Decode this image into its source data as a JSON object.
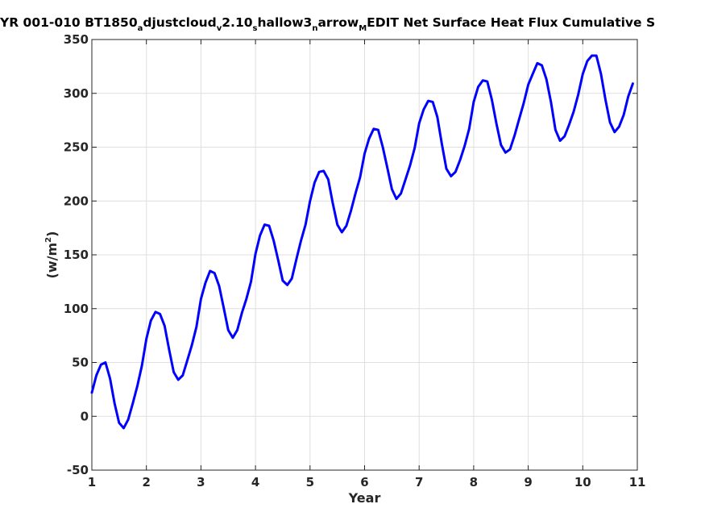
{
  "chart_data": {
    "type": "line",
    "title_parts": [
      {
        "text": "YR 001-010 BT1850",
        "style": "normal"
      },
      {
        "text": "a",
        "style": "sub"
      },
      {
        "text": "djustcloud",
        "style": "normal"
      },
      {
        "text": "v",
        "style": "sub"
      },
      {
        "text": "2.10",
        "style": "normal"
      },
      {
        "text": "s",
        "style": "sub"
      },
      {
        "text": "hallow3",
        "style": "normal"
      },
      {
        "text": "n",
        "style": "sub"
      },
      {
        "text": "arrow",
        "style": "normal"
      },
      {
        "text": "M",
        "style": "sub"
      },
      {
        "text": "EDIT Net Surface Heat Flux  Cumulative S",
        "style": "normal"
      }
    ],
    "xlabel": "Year",
    "ylabel_parts": [
      {
        "text": "(w/m",
        "style": "normal"
      },
      {
        "text": "2",
        "style": "sup"
      },
      {
        "text": ")",
        "style": "normal"
      }
    ],
    "xlim": [
      1,
      11
    ],
    "ylim": [
      -50,
      350
    ],
    "xticks": [
      1,
      2,
      3,
      4,
      5,
      6,
      7,
      8,
      9,
      10,
      11
    ],
    "xtick_labels": [
      "1",
      "2",
      "3",
      "4",
      "5",
      "6",
      "7",
      "8",
      "9",
      "10",
      "11"
    ],
    "yticks": [
      -50,
      0,
      50,
      100,
      150,
      200,
      250,
      300,
      350
    ],
    "ytick_labels": [
      "-50",
      "0",
      "50",
      "100",
      "150",
      "200",
      "250",
      "300",
      "350"
    ],
    "grid": true,
    "series": [
      {
        "color": "#0000ff",
        "x": [
          1.0,
          1.0833,
          1.1667,
          1.25,
          1.3333,
          1.4167,
          1.5,
          1.5833,
          1.6667,
          1.75,
          1.8333,
          1.9167,
          2.0,
          2.0833,
          2.1667,
          2.25,
          2.3333,
          2.4167,
          2.5,
          2.5833,
          2.6667,
          2.75,
          2.8333,
          2.9167,
          3.0,
          3.0833,
          3.1667,
          3.25,
          3.3333,
          3.4167,
          3.5,
          3.5833,
          3.6667,
          3.75,
          3.8333,
          3.9167,
          4.0,
          4.0833,
          4.1667,
          4.25,
          4.3333,
          4.4167,
          4.5,
          4.5833,
          4.6667,
          4.75,
          4.8333,
          4.9167,
          5.0,
          5.0833,
          5.1667,
          5.25,
          5.3333,
          5.4167,
          5.5,
          5.5833,
          5.6667,
          5.75,
          5.8333,
          5.9167,
          6.0,
          6.0833,
          6.1667,
          6.25,
          6.3333,
          6.4167,
          6.5,
          6.5833,
          6.6667,
          6.75,
          6.8333,
          6.9167,
          7.0,
          7.0833,
          7.1667,
          7.25,
          7.3333,
          7.4167,
          7.5,
          7.5833,
          7.6667,
          7.75,
          7.8333,
          7.9167,
          8.0,
          8.0833,
          8.1667,
          8.25,
          8.3333,
          8.4167,
          8.5,
          8.5833,
          8.6667,
          8.75,
          8.8333,
          8.9167,
          9.0,
          9.0833,
          9.1667,
          9.25,
          9.3333,
          9.4167,
          9.5,
          9.5833,
          9.6667,
          9.75,
          9.8333,
          9.9167,
          10.0,
          10.0833,
          10.1667,
          10.25,
          10.3333,
          10.4167,
          10.5,
          10.5833,
          10.6667,
          10.75,
          10.8333,
          10.9167
        ],
        "y": [
          22,
          38,
          48,
          50,
          35,
          12,
          -6,
          -11,
          -3,
          12,
          28,
          47,
          72,
          89,
          97,
          95,
          84,
          62,
          41,
          34,
          38,
          52,
          66,
          83,
          109,
          124,
          135,
          133,
          121,
          101,
          80,
          73,
          80,
          96,
          109,
          125,
          151,
          168,
          178,
          177,
          163,
          145,
          126,
          122,
          128,
          146,
          163,
          178,
          200,
          217,
          227,
          228,
          220,
          198,
          178,
          171,
          177,
          191,
          207,
          222,
          244,
          258,
          267,
          266,
          250,
          231,
          211,
          202,
          207,
          220,
          233,
          249,
          272,
          285,
          293,
          292,
          278,
          253,
          230,
          223,
          227,
          238,
          251,
          267,
          292,
          306,
          312,
          311,
          294,
          272,
          252,
          245,
          248,
          261,
          276,
          291,
          308,
          318,
          328,
          326,
          313,
          292,
          266,
          256,
          260,
          271,
          283,
          299,
          318,
          330,
          335,
          335,
          318,
          294,
          273,
          264,
          269,
          280,
          297,
          309
        ]
      }
    ]
  }
}
